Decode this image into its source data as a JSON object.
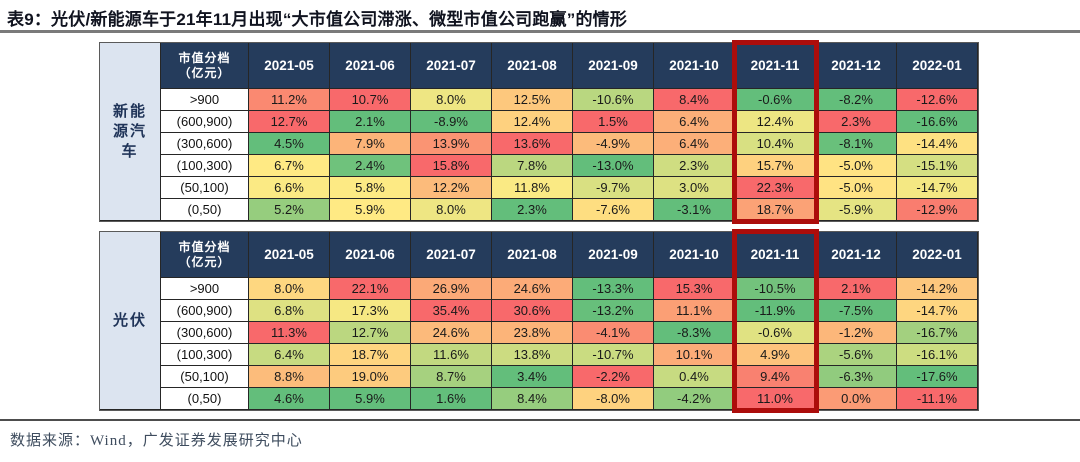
{
  "title": "表9：光伏/新能源车于21年11月出现“大市值公司滞涨、微型市值公司跑赢”的情形",
  "source_note": "数据来源：Wind，广发证券发展研究中心",
  "tier_header": [
    "市值分档",
    "（亿元）"
  ],
  "highlight": {
    "column": "2021-11",
    "color": "#ac0d0b"
  },
  "colors": {
    "header_bg": "#253c5c",
    "header_text": "#ffffff",
    "category_bg": "#dce4f0",
    "category_text": "#1f3358",
    "scale_min_green": "#63BE7B",
    "scale_mid_yellow": "#FFEB84",
    "scale_max_red": "#F8696B",
    "cell_text": "#1a1a1a"
  },
  "color_rule": "per-column 3-color scale: green = column min, yellow = column median, red = column max",
  "chart_data": [
    {
      "type": "heatmap",
      "title": "新能源汽车",
      "label_lines": [
        "新能",
        "源汽",
        "车"
      ],
      "unit": "%",
      "categories": [
        "2021-05",
        "2021-06",
        "2021-07",
        "2021-08",
        "2021-09",
        "2021-10",
        "2021-11",
        "2021-12",
        "2022-01"
      ],
      "rows": [
        ">900",
        "(600,900)",
        "(300,600)",
        "(100,300)",
        "(50,100)",
        "(0,50)"
      ],
      "series": [
        {
          "name": ">900",
          "values": [
            11.2,
            10.7,
            8.0,
            12.5,
            -10.6,
            8.4,
            -0.6,
            -8.2,
            -12.6
          ]
        },
        {
          "name": "(600,900)",
          "values": [
            12.7,
            2.1,
            -8.9,
            12.4,
            1.5,
            6.4,
            12.4,
            2.3,
            -16.6
          ]
        },
        {
          "name": "(300,600)",
          "values": [
            4.5,
            7.9,
            13.9,
            13.6,
            -4.9,
            6.4,
            10.4,
            -8.1,
            -14.4
          ]
        },
        {
          "name": "(100,300)",
          "values": [
            6.7,
            2.4,
            15.8,
            7.8,
            -13.0,
            2.3,
            15.7,
            -5.0,
            -15.1
          ]
        },
        {
          "name": "(50,100)",
          "values": [
            6.6,
            5.8,
            12.2,
            11.8,
            -9.7,
            3.0,
            22.3,
            -5.0,
            -14.7
          ]
        },
        {
          "name": "(0,50)",
          "values": [
            5.2,
            5.9,
            8.0,
            2.3,
            -7.6,
            -3.1,
            18.7,
            -5.9,
            -12.9
          ]
        }
      ]
    },
    {
      "type": "heatmap",
      "title": "光伏",
      "label_lines": [
        "光伏"
      ],
      "unit": "%",
      "categories": [
        "2021-05",
        "2021-06",
        "2021-07",
        "2021-08",
        "2021-09",
        "2021-10",
        "2021-11",
        "2021-12",
        "2022-01"
      ],
      "rows": [
        ">900",
        "(600,900)",
        "(300,600)",
        "(100,300)",
        "(50,100)",
        "(0,50)"
      ],
      "series": [
        {
          "name": ">900",
          "values": [
            8.0,
            22.1,
            26.9,
            24.6,
            -13.3,
            15.3,
            -10.5,
            2.1,
            -14.2
          ]
        },
        {
          "name": "(600,900)",
          "values": [
            6.8,
            17.3,
            35.4,
            30.6,
            -13.2,
            11.1,
            -11.9,
            -7.5,
            -14.7
          ]
        },
        {
          "name": "(300,600)",
          "values": [
            11.3,
            12.7,
            24.6,
            23.8,
            -4.1,
            -8.3,
            -0.6,
            -1.2,
            -16.7
          ]
        },
        {
          "name": "(100,300)",
          "values": [
            6.4,
            18.7,
            11.6,
            13.8,
            -10.7,
            10.1,
            4.9,
            -5.6,
            -16.1
          ]
        },
        {
          "name": "(50,100)",
          "values": [
            8.8,
            19.0,
            8.7,
            3.4,
            -2.2,
            0.4,
            9.4,
            -6.3,
            -17.6
          ]
        },
        {
          "name": "(0,50)",
          "values": [
            4.6,
            5.9,
            1.6,
            8.4,
            -8.0,
            -4.2,
            11.0,
            0.0,
            -11.1
          ]
        }
      ]
    }
  ]
}
